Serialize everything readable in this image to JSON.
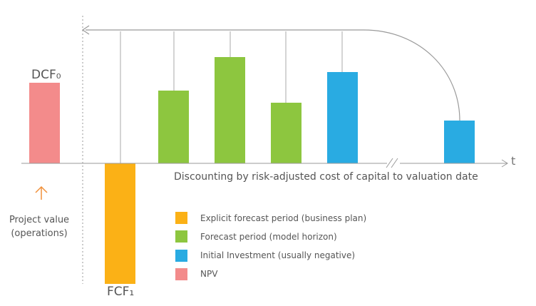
{
  "labels": {
    "dcf0": "DCF₀",
    "fcf1": "FCF₁",
    "t_axis": "t",
    "discounting": "Discounting by risk-adjusted cost of capital to valuation date",
    "project_value": "Project value (operations)"
  },
  "legend": [
    {
      "label": "Explicit forecast period (business plan)",
      "color": "#fbb116"
    },
    {
      "label": "Forecast period (model horizon)",
      "color": "#8dc63f"
    },
    {
      "label": "Initial Investment (usually negative)",
      "color": "#29abe2"
    },
    {
      "label": "NPV",
      "color": "#f38b8b"
    }
  ],
  "colors": {
    "axis": "#9a9a9a",
    "arrow_orange": "#f0903a",
    "orange": "#fbb116",
    "green": "#8dc63f",
    "blue": "#29abe2",
    "pink": "#f38b8b"
  },
  "icons": {
    "up_arrow": "arrow-up-icon",
    "axis_break": "axis-break-icon"
  }
}
